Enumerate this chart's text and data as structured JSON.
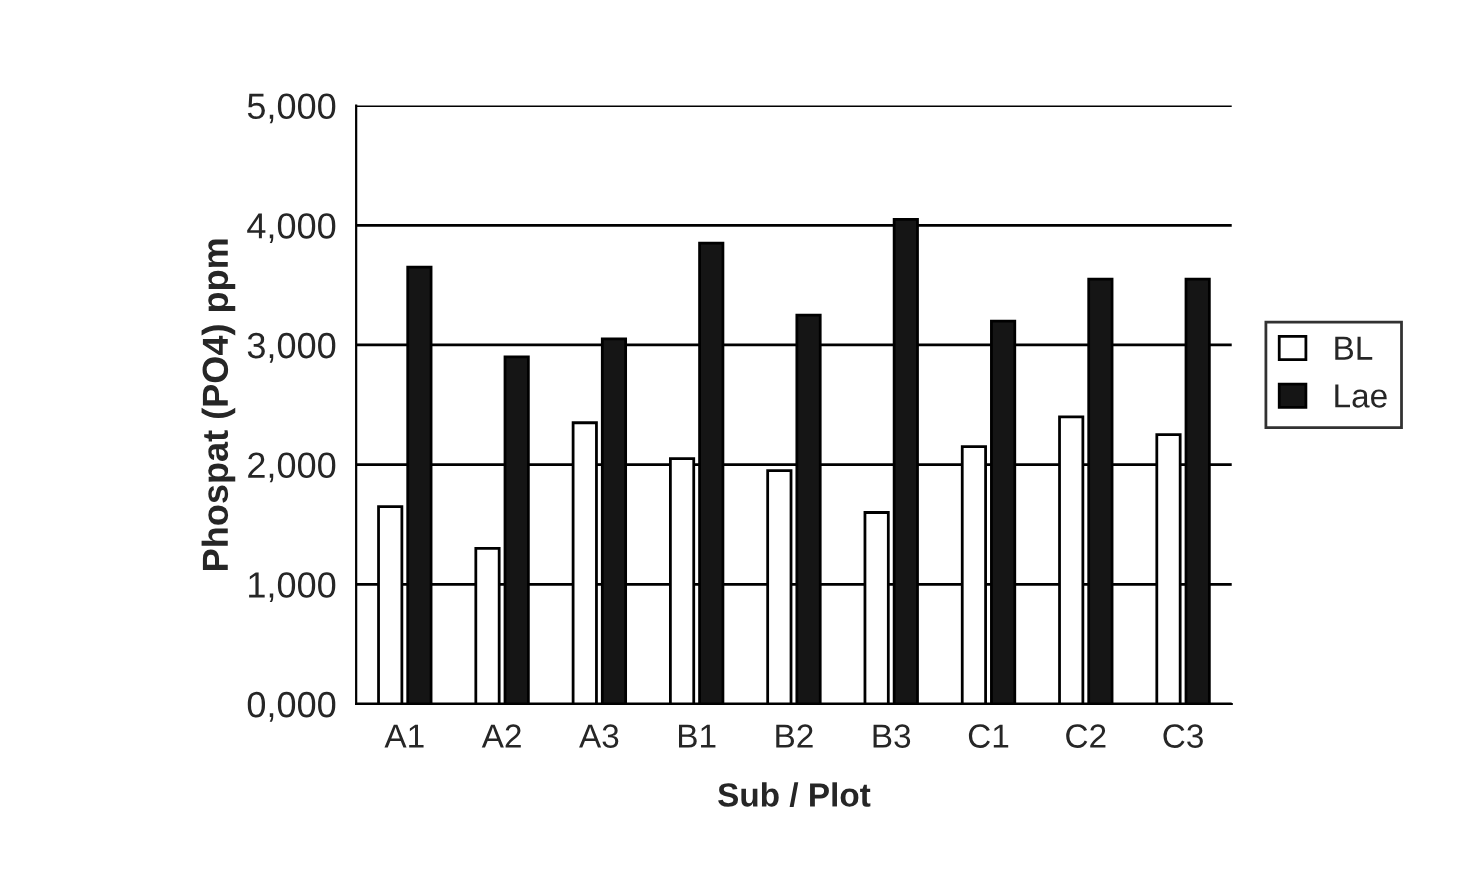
{
  "chart_data": {
    "type": "bar",
    "xlabel": "Sub / Plot",
    "ylabel": "Phospat (PO4) ppm",
    "categories": [
      "A1",
      "A2",
      "A3",
      "B1",
      "B2",
      "B3",
      "C1",
      "C2",
      "C3"
    ],
    "series": [
      {
        "name": "BL",
        "color": "#ffffff",
        "values": [
          1650,
          1300,
          2350,
          2050,
          1950,
          1600,
          2150,
          2400,
          2250
        ]
      },
      {
        "name": "Lae",
        "color": "#151515",
        "values": [
          3650,
          2900,
          3050,
          3850,
          3250,
          4050,
          3200,
          3550,
          3550
        ]
      }
    ],
    "ylim": [
      0,
      5000
    ],
    "yticks": [
      {
        "value": 0,
        "label": "0,000"
      },
      {
        "value": 1000,
        "label": "1,000"
      },
      {
        "value": 2000,
        "label": "2,000"
      },
      {
        "value": 3000,
        "label": "3,000"
      },
      {
        "value": 4000,
        "label": "4,000"
      },
      {
        "value": 5000,
        "label": "5,000"
      }
    ],
    "grid": "y",
    "legend": "right"
  }
}
